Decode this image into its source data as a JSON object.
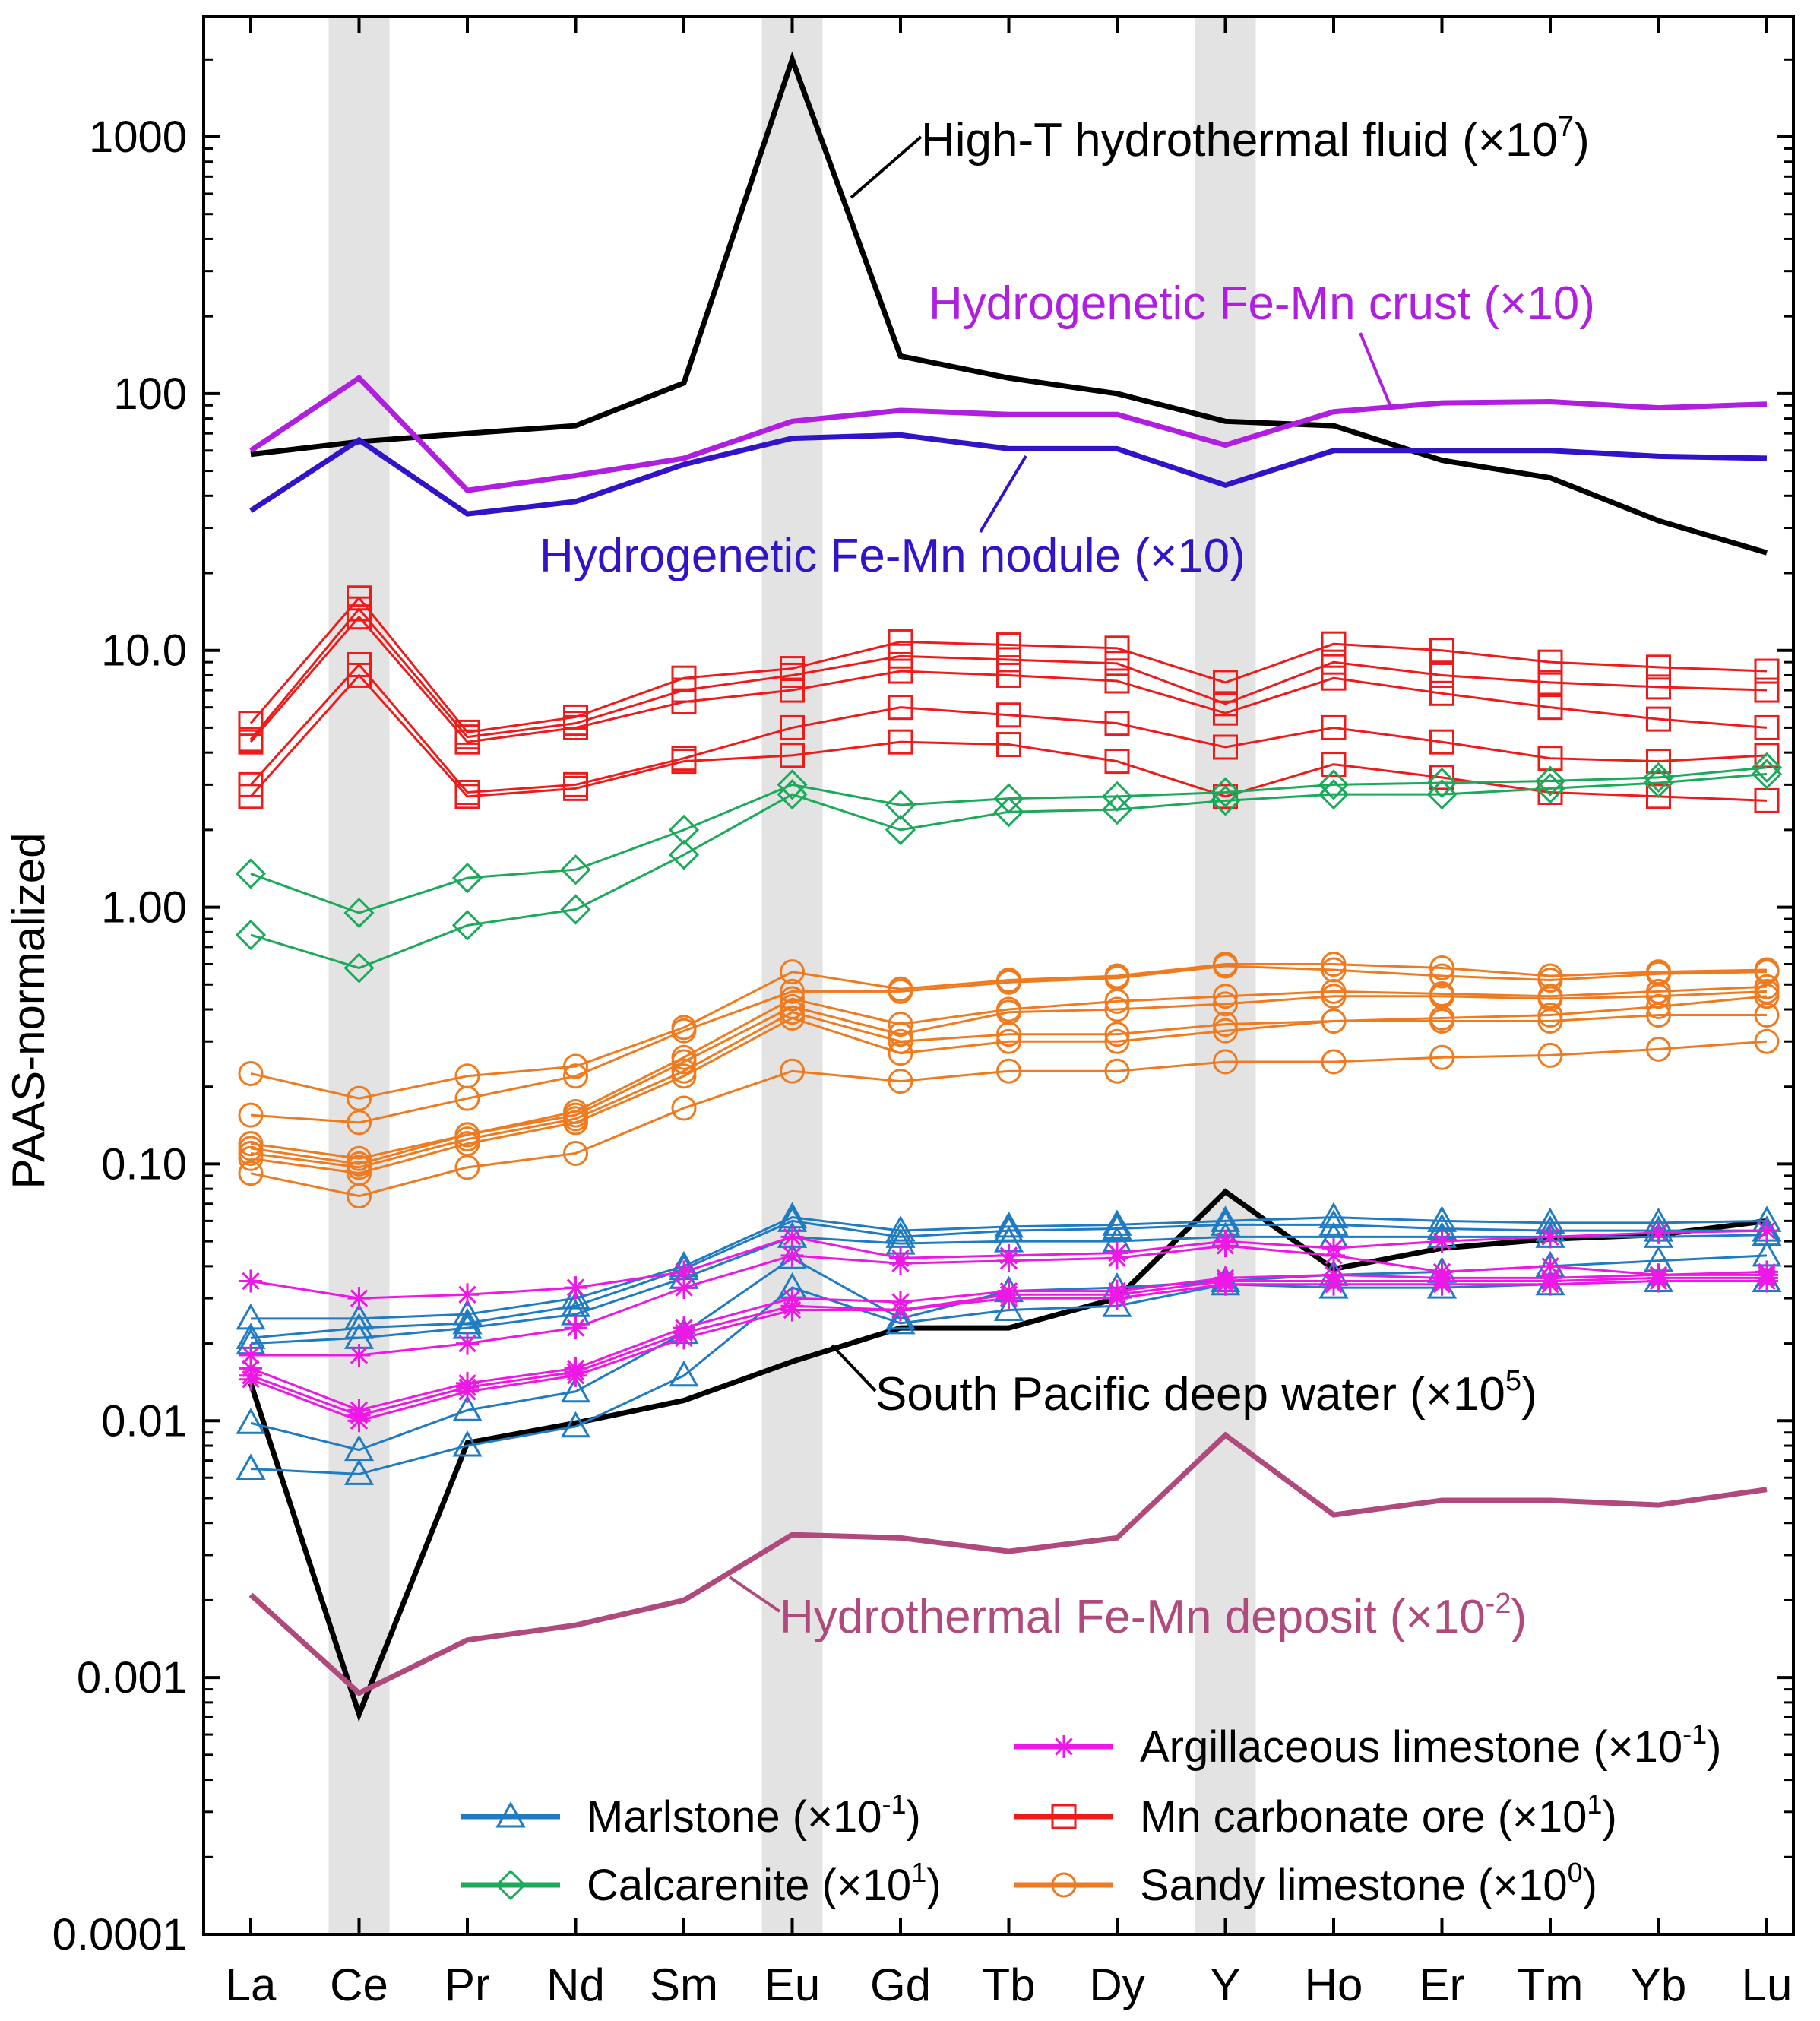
{
  "chart_data": {
    "type": "line",
    "y_scale": "log",
    "ylabel": "PAAS-normalized",
    "xlabel": "",
    "ylim": [
      0.0001,
      3000
    ],
    "y_ticks": [
      {
        "value": 1000,
        "label": "1000"
      },
      {
        "value": 100,
        "label": "100"
      },
      {
        "value": 10,
        "label": "10.0"
      },
      {
        "value": 1,
        "label": "1.00"
      },
      {
        "value": 0.1,
        "label": "0.10"
      },
      {
        "value": 0.01,
        "label": "0.01"
      },
      {
        "value": 0.001,
        "label": "0.001"
      },
      {
        "value": 0.0001,
        "label": "0.0001"
      }
    ],
    "categories": [
      "La",
      "Ce",
      "Pr",
      "Nd",
      "Sm",
      "Eu",
      "Gd",
      "Tb",
      "Dy",
      "Y",
      "Ho",
      "Er",
      "Tm",
      "Yb",
      "Lu"
    ],
    "highlight_bands": [
      "Ce",
      "Eu",
      "Y"
    ],
    "reference_lines": [
      {
        "name": "High-T hydrothermal fluid",
        "color": "#000000",
        "values": [
          58,
          65,
          70,
          75,
          110,
          2000,
          140,
          115,
          100,
          78,
          75,
          55,
          47,
          32,
          24
        ]
      },
      {
        "name": "Hydrogenetic Fe-Mn crust",
        "color": "#b01fe0",
        "values": [
          60,
          115,
          42,
          48,
          56,
          78,
          86,
          83,
          83,
          63,
          85,
          92,
          93,
          88,
          91
        ]
      },
      {
        "name": "Hydrogenetic Fe-Mn nodule",
        "color": "#3213c8",
        "values": [
          35,
          66,
          34,
          38,
          53,
          67,
          69,
          61,
          61,
          44,
          60,
          60,
          60,
          57,
          56
        ]
      },
      {
        "name": "South Pacific deep water",
        "color": "#000000",
        "values": [
          0.014,
          0.00072,
          0.0082,
          0.0098,
          0.012,
          0.017,
          0.023,
          0.023,
          0.03,
          0.078,
          0.039,
          0.047,
          0.051,
          0.053,
          0.06
        ]
      },
      {
        "name": "Hydrothermal Fe-Mn deposit",
        "color": "#b14a7c",
        "values": [
          0.0021,
          0.00087,
          0.0014,
          0.0016,
          0.002,
          0.0036,
          0.0035,
          0.0031,
          0.0035,
          0.0088,
          0.0043,
          0.0049,
          0.0049,
          0.0047,
          0.0054
        ]
      }
    ],
    "groups": [
      {
        "name": "Mn carbonate ore",
        "color": "#ee1b1b",
        "marker": "square",
        "series": [
          [
            5.2,
            16.0,
            4.8,
            5.5,
            7.8,
            8.5,
            10.8,
            10.5,
            10.2,
            7.5,
            10.6,
            10.0,
            9.0,
            8.6,
            8.3
          ],
          [
            4.5,
            14.5,
            4.6,
            5.2,
            7.0,
            8.0,
            9.5,
            9.2,
            8.9,
            6.2,
            9.0,
            8.0,
            7.5,
            7.2,
            7.0
          ],
          [
            4.4,
            13.5,
            4.4,
            5.0,
            6.3,
            7.0,
            8.3,
            8.0,
            7.6,
            5.7,
            7.8,
            6.8,
            6.0,
            5.4,
            5.0
          ],
          [
            3.0,
            8.8,
            2.8,
            3.0,
            3.8,
            5.0,
            6.0,
            5.6,
            5.2,
            4.2,
            5.0,
            4.4,
            3.8,
            3.7,
            3.9
          ],
          [
            2.7,
            8.0,
            2.7,
            2.9,
            3.7,
            3.9,
            4.4,
            4.3,
            3.7,
            2.7,
            3.6,
            3.2,
            2.8,
            2.7,
            2.6
          ]
        ]
      },
      {
        "name": "Calcarenite",
        "color": "#1aaa5a",
        "marker": "diamond",
        "series": [
          [
            1.35,
            0.95,
            1.3,
            1.4,
            2.0,
            3.0,
            2.5,
            2.65,
            2.7,
            2.8,
            3.0,
            3.05,
            3.1,
            3.2,
            3.5
          ],
          [
            0.78,
            0.58,
            0.85,
            0.98,
            1.6,
            2.75,
            2.0,
            2.35,
            2.4,
            2.6,
            2.75,
            2.75,
            2.9,
            3.05,
            3.3
          ]
        ]
      },
      {
        "name": "Sandy limestone",
        "color": "#f07a1e",
        "marker": "circle",
        "series": [
          [
            0.225,
            0.18,
            0.22,
            0.24,
            0.34,
            0.56,
            0.48,
            0.52,
            0.54,
            0.6,
            0.6,
            0.58,
            0.54,
            0.56,
            0.57
          ],
          [
            0.155,
            0.145,
            0.18,
            0.22,
            0.33,
            0.47,
            0.47,
            0.51,
            0.53,
            0.59,
            0.57,
            0.54,
            0.52,
            0.55,
            0.56
          ],
          [
            0.12,
            0.105,
            0.13,
            0.16,
            0.26,
            0.44,
            0.35,
            0.4,
            0.43,
            0.45,
            0.47,
            0.46,
            0.45,
            0.47,
            0.49
          ],
          [
            0.115,
            0.1,
            0.13,
            0.155,
            0.25,
            0.41,
            0.32,
            0.39,
            0.4,
            0.42,
            0.45,
            0.45,
            0.44,
            0.45,
            0.47
          ],
          [
            0.11,
            0.097,
            0.125,
            0.15,
            0.23,
            0.39,
            0.3,
            0.32,
            0.32,
            0.35,
            0.36,
            0.37,
            0.38,
            0.41,
            0.45
          ],
          [
            0.105,
            0.092,
            0.12,
            0.145,
            0.22,
            0.37,
            0.27,
            0.3,
            0.3,
            0.33,
            0.36,
            0.36,
            0.36,
            0.38,
            0.38
          ],
          [
            0.092,
            0.075,
            0.097,
            0.11,
            0.165,
            0.23,
            0.21,
            0.23,
            0.23,
            0.25,
            0.25,
            0.26,
            0.265,
            0.28,
            0.3
          ]
        ]
      },
      {
        "name": "Marlstone",
        "color": "#1f7bc2",
        "marker": "triangle",
        "series": [
          [
            0.025,
            0.025,
            0.026,
            0.03,
            0.04,
            0.062,
            0.055,
            0.057,
            0.058,
            0.06,
            0.062,
            0.06,
            0.059,
            0.059,
            0.06
          ],
          [
            0.021,
            0.023,
            0.024,
            0.028,
            0.039,
            0.06,
            0.052,
            0.055,
            0.056,
            0.058,
            0.058,
            0.056,
            0.055,
            0.055,
            0.055
          ],
          [
            0.02,
            0.021,
            0.023,
            0.026,
            0.036,
            0.052,
            0.049,
            0.05,
            0.05,
            0.052,
            0.052,
            0.052,
            0.052,
            0.052,
            0.053
          ],
          [
            0.0098,
            0.0077,
            0.011,
            0.013,
            0.022,
            0.043,
            0.025,
            0.032,
            0.033,
            0.035,
            0.037,
            0.038,
            0.04,
            0.042,
            0.044
          ],
          [
            0.0065,
            0.0062,
            0.008,
            0.0095,
            0.015,
            0.033,
            0.024,
            0.027,
            0.028,
            0.034,
            0.033,
            0.033,
            0.034,
            0.035,
            0.035
          ]
        ]
      },
      {
        "name": "Argillaceous limestone",
        "color": "#ee18e6",
        "marker": "asterisk",
        "series": [
          [
            0.035,
            0.03,
            0.031,
            0.033,
            0.038,
            0.052,
            0.043,
            0.044,
            0.045,
            0.05,
            0.047,
            0.05,
            0.052,
            0.054,
            0.055
          ],
          [
            0.018,
            0.018,
            0.02,
            0.023,
            0.033,
            0.044,
            0.041,
            0.042,
            0.043,
            0.048,
            0.044,
            0.038,
            0.04,
            0.037,
            0.038
          ],
          [
            0.016,
            0.011,
            0.014,
            0.016,
            0.023,
            0.03,
            0.029,
            0.032,
            0.032,
            0.036,
            0.037,
            0.036,
            0.036,
            0.037,
            0.037
          ],
          [
            0.015,
            0.0105,
            0.0135,
            0.0155,
            0.022,
            0.028,
            0.027,
            0.031,
            0.031,
            0.035,
            0.035,
            0.035,
            0.035,
            0.036,
            0.036
          ],
          [
            0.0145,
            0.01,
            0.013,
            0.015,
            0.021,
            0.027,
            0.027,
            0.03,
            0.03,
            0.034,
            0.034,
            0.034,
            0.034,
            0.035,
            0.035
          ]
        ]
      }
    ],
    "annotations": [
      {
        "label": "High-T hydrothermal fluid (×10",
        "sup": "7",
        "tail": ")",
        "color": "#000000"
      },
      {
        "label": "Hydrogenetic Fe-Mn crust (×10)",
        "sup": "",
        "tail": "",
        "color": "#b01fe0"
      },
      {
        "label": "Hydrogenetic Fe-Mn nodule (×10)",
        "sup": "",
        "tail": "",
        "color": "#3213c8"
      },
      {
        "label": "South Pacific deep water (×10",
        "sup": "5",
        "tail": ")",
        "color": "#000000"
      },
      {
        "label": "Hydrothermal Fe-Mn deposit (×10",
        "sup": "-2",
        "tail": ")",
        "color": "#b14a7c"
      }
    ],
    "legend": {
      "placement": "bottom-right",
      "entries": [
        {
          "label": "Argillaceous limestone (×10",
          "sup": "-1",
          "tail": ")",
          "color": "#ee18e6",
          "marker": "asterisk"
        },
        {
          "label": "Marlstone (×10",
          "sup": "-1",
          "tail": ")",
          "color": "#1f7bc2",
          "marker": "triangle"
        },
        {
          "label": "Mn carbonate ore (×10",
          "sup": "1",
          "tail": ")",
          "color": "#ee1b1b",
          "marker": "square"
        },
        {
          "label": "Calcarenite (×10",
          "sup": "1",
          "tail": ")",
          "color": "#1aaa5a",
          "marker": "diamond"
        },
        {
          "label": "Sandy limestone (×10",
          "sup": "0",
          "tail": ")",
          "color": "#f07a1e",
          "marker": "circle"
        }
      ]
    }
  }
}
